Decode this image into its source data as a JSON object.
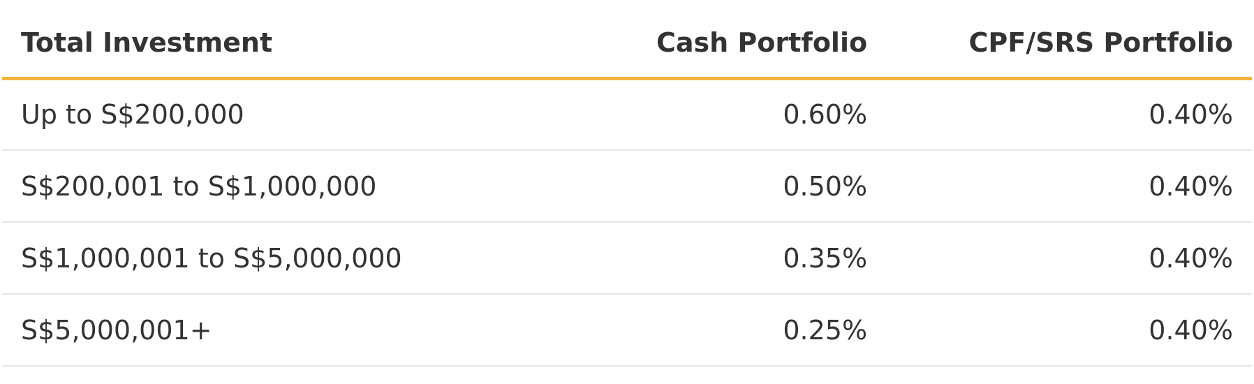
{
  "table": {
    "header": [
      "Total Investment",
      "Cash Portfolio",
      "CPF/SRS Portfolio"
    ],
    "rows": [
      [
        "Up to S$200,000",
        "0.60%",
        "0.40%"
      ],
      [
        "S$200,001 to S$1,000,000",
        "0.50%",
        "0.40%"
      ],
      [
        "S$1,000,001 to S$5,000,000",
        "0.35%",
        "0.40%"
      ],
      [
        "S$5,000,001+",
        "0.25%",
        "0.40%"
      ]
    ]
  }
}
